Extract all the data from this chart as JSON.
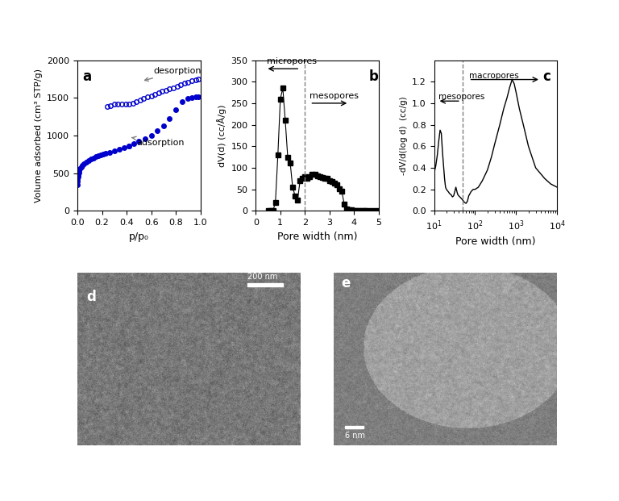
{
  "panel_a": {
    "label": "a",
    "adsorption_x": [
      0.001,
      0.002,
      0.003,
      0.005,
      0.007,
      0.01,
      0.015,
      0.02,
      0.03,
      0.04,
      0.05,
      0.07,
      0.09,
      0.11,
      0.13,
      0.15,
      0.17,
      0.19,
      0.21,
      0.23,
      0.26,
      0.3,
      0.34,
      0.38,
      0.42,
      0.46,
      0.5,
      0.55,
      0.6,
      0.65,
      0.7,
      0.75,
      0.8,
      0.85,
      0.9,
      0.93,
      0.96,
      0.98
    ],
    "adsorption_y": [
      350,
      390,
      420,
      450,
      480,
      510,
      540,
      560,
      585,
      605,
      622,
      650,
      672,
      690,
      705,
      718,
      730,
      742,
      752,
      762,
      775,
      795,
      815,
      838,
      862,
      890,
      920,
      960,
      1005,
      1060,
      1130,
      1220,
      1340,
      1450,
      1490,
      1505,
      1510,
      1515
    ],
    "desorption_x": [
      0.98,
      0.96,
      0.93,
      0.9,
      0.87,
      0.84,
      0.81,
      0.78,
      0.75,
      0.72,
      0.69,
      0.66,
      0.63,
      0.6,
      0.57,
      0.54,
      0.51,
      0.48,
      0.45,
      0.42,
      0.39,
      0.36,
      0.33,
      0.3,
      0.27,
      0.24,
      0.42
    ],
    "desorption_y": [
      1750,
      1740,
      1730,
      1710,
      1690,
      1670,
      1650,
      1635,
      1618,
      1600,
      1583,
      1565,
      1547,
      1528,
      1508,
      1488,
      1468,
      1450,
      1430,
      1420,
      1415,
      1415,
      1415,
      1415,
      1400,
      1380,
      862
    ],
    "ylabel": "Volume adsorbed (cm³ STP/g)",
    "xlabel": "p/p₀",
    "ylim": [
      0,
      2000
    ],
    "xlim": [
      0.0,
      1.0
    ],
    "yticks": [
      0,
      500,
      1000,
      1500,
      2000
    ],
    "xticks": [
      0.0,
      0.2,
      0.4,
      0.6,
      0.8,
      1.0
    ],
    "color": "#0000cc",
    "adsorption_label": "adsorption",
    "desorption_label": "desorption"
  },
  "panel_b": {
    "label": "b",
    "x": [
      0.5,
      0.6,
      0.7,
      0.8,
      0.9,
      1.0,
      1.1,
      1.2,
      1.3,
      1.4,
      1.5,
      1.6,
      1.7,
      1.8,
      1.9,
      2.0,
      2.1,
      2.2,
      2.3,
      2.4,
      2.5,
      2.6,
      2.7,
      2.8,
      2.9,
      3.0,
      3.1,
      3.2,
      3.3,
      3.4,
      3.5,
      3.6,
      3.7,
      3.8,
      3.9,
      4.0,
      4.1,
      4.2,
      4.3,
      4.4,
      4.5,
      4.7,
      4.9
    ],
    "y": [
      0,
      0,
      0,
      20,
      130,
      260,
      285,
      210,
      125,
      112,
      55,
      35,
      25,
      70,
      75,
      80,
      75,
      80,
      85,
      85,
      82,
      80,
      78,
      75,
      75,
      70,
      68,
      65,
      60,
      52,
      45,
      15,
      5,
      3,
      2,
      1,
      1,
      0,
      0,
      0,
      0,
      0,
      0
    ],
    "ylabel": "dV(d) (cc/Å/g)",
    "xlabel": "Pore width (nm)",
    "ylim": [
      0,
      350
    ],
    "xlim": [
      0,
      5
    ],
    "yticks": [
      0,
      50,
      100,
      150,
      200,
      250,
      300,
      350
    ],
    "xticks": [
      0,
      1,
      2,
      3,
      4,
      5
    ],
    "micropores_label": "micropores",
    "mesopores_label": "mesopores",
    "vline_x": 2.0
  },
  "panel_c": {
    "label": "c",
    "x": [
      10,
      11,
      12,
      13,
      14,
      15,
      16,
      17,
      18,
      19,
      20,
      22,
      24,
      26,
      28,
      30,
      32,
      34,
      36,
      38,
      40,
      45,
      50,
      55,
      60,
      65,
      70,
      80,
      90,
      100,
      120,
      150,
      200,
      250,
      300,
      400,
      500,
      600,
      700,
      800,
      900,
      1000,
      1200,
      1500,
      2000,
      3000,
      5000,
      7000,
      10000
    ],
    "y": [
      0.35,
      0.42,
      0.52,
      0.65,
      0.75,
      0.72,
      0.55,
      0.42,
      0.3,
      0.22,
      0.2,
      0.18,
      0.16,
      0.15,
      0.13,
      0.14,
      0.18,
      0.22,
      0.18,
      0.15,
      0.14,
      0.12,
      0.1,
      0.08,
      0.07,
      0.09,
      0.14,
      0.18,
      0.2,
      0.2,
      0.22,
      0.28,
      0.38,
      0.5,
      0.62,
      0.8,
      0.95,
      1.05,
      1.15,
      1.22,
      1.18,
      1.1,
      0.95,
      0.8,
      0.6,
      0.4,
      0.3,
      0.25,
      0.22
    ],
    "ylabel": "-dV/d(log d)  (cc/g)",
    "xlabel": "Pore width (nm)",
    "ylim": [
      0.0,
      1.4
    ],
    "xlim_log": [
      10,
      10000
    ],
    "yticks": [
      0.0,
      0.2,
      0.4,
      0.6,
      0.8,
      1.0,
      1.2
    ],
    "mesopores_label": "mesopores",
    "macropores_label": "macropores",
    "vline_x": 50
  },
  "panel_d": {
    "label": "d",
    "scale_bar_text": "200 nm",
    "image_color": "#888888"
  },
  "panel_e": {
    "label": "e",
    "scale_bar_text": "6 nm",
    "image_color": "#aaaaaa"
  },
  "figure_bg": "#ffffff"
}
